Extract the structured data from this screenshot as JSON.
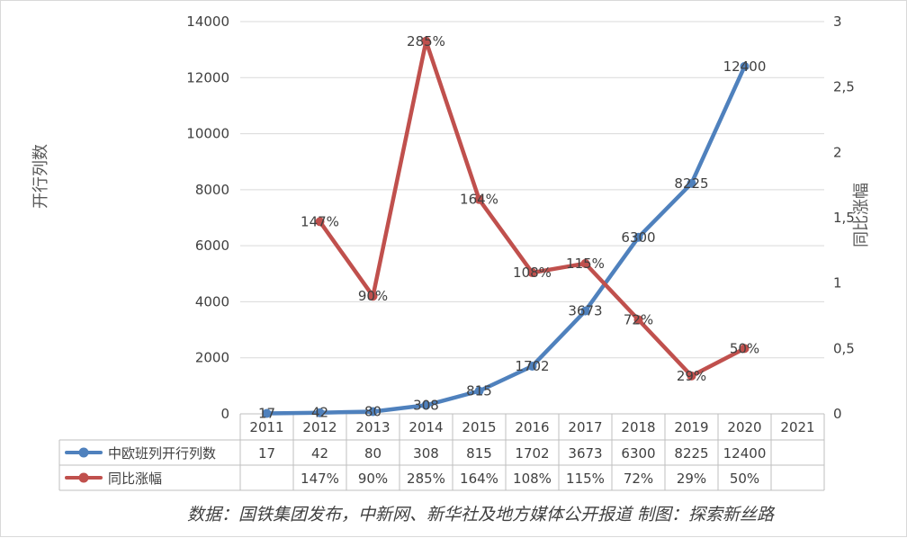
{
  "chart_data": {
    "type": "line",
    "categories": [
      "2011",
      "2012",
      "2013",
      "2014",
      "2015",
      "2016",
      "2017",
      "2018",
      "2019",
      "2020",
      "2021"
    ],
    "series": [
      {
        "name": "中欧班列开行列数",
        "axis": "left",
        "color": "#4F81BD",
        "values": [
          17,
          42,
          80,
          308,
          815,
          1702,
          3673,
          6300,
          8225,
          12400,
          null
        ],
        "labels": [
          "17",
          "42",
          "80",
          "308",
          "815",
          "1702",
          "3673",
          "6300",
          "8225",
          "12400",
          ""
        ]
      },
      {
        "name": "同比涨幅",
        "axis": "right",
        "color": "#C0504D",
        "values": [
          null,
          1.47,
          0.9,
          2.85,
          1.64,
          1.08,
          1.15,
          0.72,
          0.29,
          0.5,
          null
        ],
        "labels": [
          "",
          "147%",
          "90%",
          "285%",
          "164%",
          "108%",
          "115%",
          "72%",
          "29%",
          "50%",
          ""
        ]
      }
    ],
    "y_left": {
      "label": "开行列数",
      "ylim": [
        0,
        14000
      ],
      "ticks": [
        "0",
        "2000",
        "4000",
        "6000",
        "8000",
        "10000",
        "12000",
        "14000"
      ]
    },
    "y_right": {
      "label": "同比涨幅",
      "ylim": [
        0,
        3
      ],
      "ticks": [
        "0",
        "0,5",
        "1",
        "1,5",
        "2",
        "2,5",
        "3"
      ]
    },
    "grid": true,
    "legend": "data-table"
  },
  "source_note": "数据：国铁集团发布，中新网、新华社及地方媒体公开报道 制图：探索新丝路"
}
